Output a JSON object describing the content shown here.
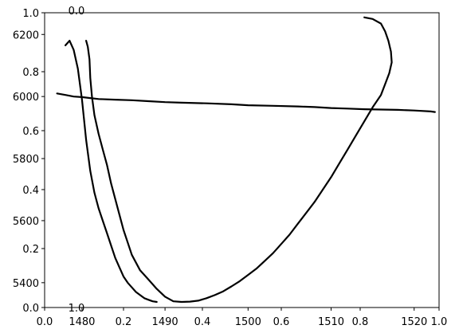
{
  "chart_data": {
    "type": "line",
    "title": "",
    "xlabel": "",
    "ylabel": "",
    "grid": false,
    "legend": "none",
    "color": "#000000",
    "frame_axes": {
      "xlim": [
        0.0,
        1.0
      ],
      "ylim": [
        0.0,
        1.0
      ],
      "x_ticks": [
        "0.0",
        "0.2",
        "0.4",
        "0.6",
        "0.8",
        "1.0"
      ],
      "y_ticks": [
        "0.0",
        "0.2",
        "0.4",
        "0.6",
        "0.8",
        "1.0"
      ]
    },
    "twin_x_axes": [
      {
        "label": "0.0",
        "position": "top"
      },
      {
        "label": "1.0",
        "position": "bottom"
      }
    ],
    "depth_axis": {
      "ylim": [
        5320,
        6270
      ],
      "ticks": [
        5400,
        5600,
        5800,
        6000,
        6200
      ]
    },
    "lower_axis": {
      "xlim": [
        1475.5,
        1523
      ],
      "ticks": [
        1480,
        1490,
        1500,
        1510,
        1520
      ],
      "tick_labels": [
        "1480",
        "1490",
        "1500",
        "1510",
        "1520"
      ]
    },
    "series": [
      {
        "x": [
          1478.0,
          1478.5,
          1479.0,
          1479.5,
          1480.0,
          1480.5,
          1481.0,
          1481.5,
          1482.0,
          1482.5,
          1483.0,
          1483.5,
          1484.0,
          1484.5,
          1485.0,
          1485.5,
          1486.0,
          1486.5,
          1487.0,
          1487.5,
          1488.0,
          1488.5,
          1489.0
        ],
        "y": [
          6165,
          6180,
          6150,
          6090,
          5990,
          5860,
          5760,
          5690,
          5640,
          5600,
          5560,
          5520,
          5480,
          5450,
          5420,
          5400,
          5385,
          5370,
          5360,
          5350,
          5345,
          5340,
          5338
        ]
      },
      {
        "x": [
          1480.5,
          1480.7,
          1480.9,
          1481.0,
          1481.2,
          1481.5,
          1482.0,
          1482.5,
          1483.0,
          1483.5,
          1484.0,
          1484.5,
          1485.0,
          1485.5,
          1486.0,
          1487.0,
          1488.0,
          1489.0,
          1490.0,
          1491.0,
          1492.0,
          1493.0,
          1494.0,
          1495.0,
          1496.0,
          1497.0,
          1498.0,
          1499.0,
          1500.0,
          1501.0,
          1502.0,
          1503.0,
          1504.0,
          1505.0,
          1506.0,
          1507.0,
          1508.0,
          1509.0,
          1510.0,
          1511.0,
          1512.0,
          1513.0,
          1514.0,
          1515.0,
          1516.0,
          1516.5,
          1517.0,
          1517.3,
          1517.2,
          1516.9,
          1516.5,
          1516.0,
          1515.0,
          1514.0
        ],
        "y": [
          6180,
          6160,
          6120,
          6060,
          6000,
          5940,
          5880,
          5830,
          5780,
          5720,
          5670,
          5620,
          5570,
          5530,
          5490,
          5440,
          5410,
          5380,
          5355,
          5340,
          5338,
          5339,
          5342,
          5350,
          5360,
          5372,
          5388,
          5405,
          5425,
          5445,
          5470,
          5495,
          5525,
          5555,
          5590,
          5625,
          5660,
          5700,
          5740,
          5785,
          5830,
          5875,
          5920,
          5965,
          6005,
          6040,
          6075,
          6110,
          6145,
          6180,
          6210,
          6235,
          6250,
          6255
        ]
      },
      {
        "x": [
          1477.0,
          1478.0,
          1479.0,
          1480.0,
          1481.0,
          1482.0,
          1484.0,
          1486.0,
          1488.0,
          1490.0,
          1492.0,
          1495.0,
          1498.0,
          1500.0,
          1503.0,
          1506.0,
          1508.0,
          1510.0,
          1512.0,
          1514.0,
          1516.0,
          1518.0,
          1520.0,
          1522.0,
          1522.5
        ],
        "y": [
          6010,
          6005,
          6000,
          5998,
          5995,
          5992,
          5990,
          5988,
          5985,
          5982,
          5980,
          5978,
          5975,
          5972,
          5970,
          5968,
          5966,
          5963,
          5961,
          5959,
          5958,
          5957,
          5955,
          5952,
          5950
        ]
      }
    ]
  }
}
